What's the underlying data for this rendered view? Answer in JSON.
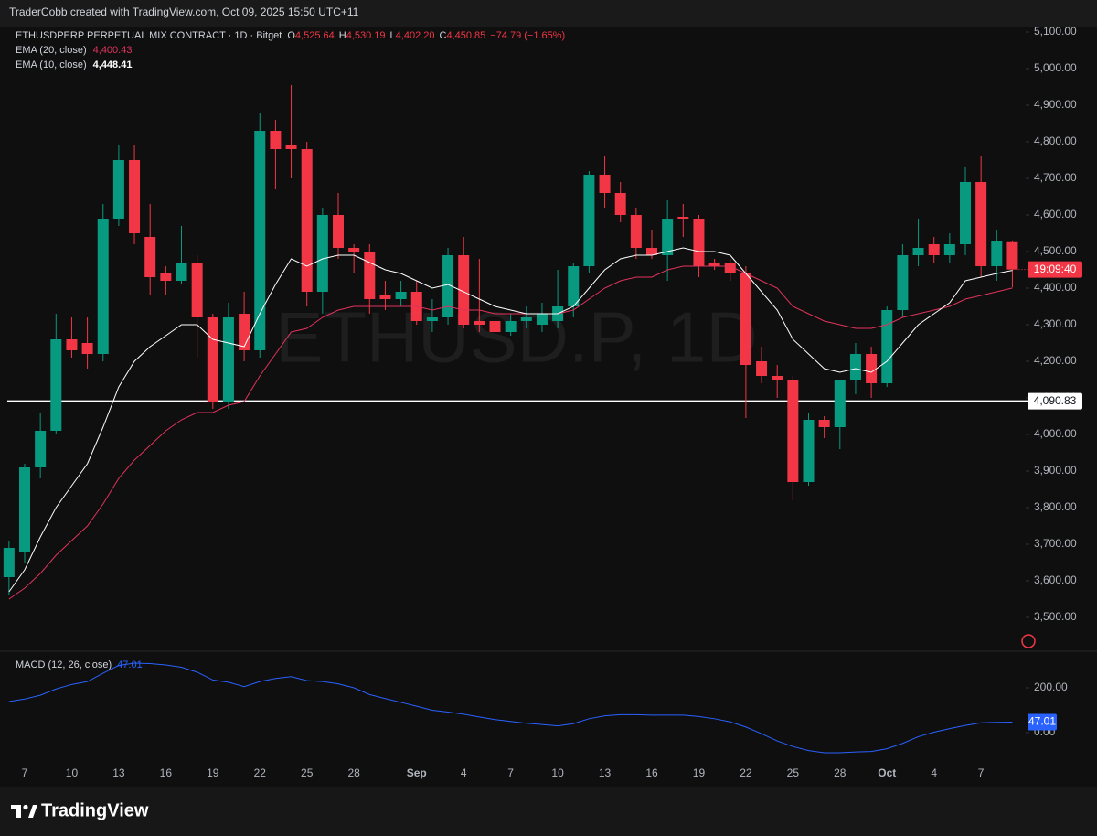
{
  "header_bar": "TraderCobb created with TradingView.com, Oct 09, 2025 15:50 UTC+11",
  "footer_brand": "TradingView",
  "chart_data": [
    {
      "type": "candlestick",
      "title": "ETHUSDPERP PERPETUAL MIX CONTRACT · 1D · Bitget",
      "legend": [
        {
          "key": "O",
          "value": "4,525.64"
        },
        {
          "key": "H",
          "value": "4,530.19"
        },
        {
          "key": "L",
          "value": "4,402.20"
        },
        {
          "key": "C",
          "value": "4,450.85"
        }
      ],
      "change": "−74.79 (−1.65%)",
      "watermark": "ETHUSD.P, 1D",
      "countdown": "19:09:40",
      "up_color": "#089981",
      "down_color": "#f23645",
      "categories": [
        null,
        "7",
        null,
        null,
        "10",
        null,
        null,
        "13",
        null,
        null,
        "16",
        null,
        null,
        "19",
        null,
        null,
        "22",
        null,
        null,
        "25",
        null,
        null,
        "28",
        null,
        null,
        null,
        "Sep",
        null,
        null,
        "4",
        null,
        null,
        "7",
        null,
        null,
        "10",
        null,
        null,
        "13",
        null,
        null,
        "16",
        null,
        null,
        "19",
        null,
        null,
        "22",
        null,
        null,
        "25",
        null,
        null,
        "28",
        null,
        null,
        "Oct",
        null,
        null,
        "4",
        null,
        null,
        "7",
        null,
        null
      ],
      "open": [
        3610,
        3680,
        3910,
        4010,
        4260,
        4250,
        4220,
        4590,
        4750,
        4540,
        4440,
        4420,
        4470,
        4320,
        4090,
        4330,
        4230,
        4830,
        4790,
        4780,
        4390,
        4600,
        4510,
        4500,
        4380,
        4370,
        4390,
        4310,
        4320,
        4490,
        4310,
        4310,
        4280,
        4310,
        4300,
        4310,
        4350,
        4460,
        4710,
        4660,
        4600,
        4510,
        4490,
        4595,
        4590,
        4470,
        4470,
        4440,
        4200,
        4160,
        4150,
        3870,
        4040,
        4020,
        4150,
        4220,
        4140,
        4340,
        4490,
        4520,
        4490,
        4520,
        4690,
        4460,
        4525.64
      ],
      "high": [
        3710,
        3920,
        4060,
        4330,
        4320,
        4320,
        4630,
        4790,
        4790,
        4630,
        4460,
        4570,
        4490,
        4330,
        4360,
        4390,
        4880,
        4860,
        4955,
        4800,
        4620,
        4660,
        4520,
        4520,
        4420,
        4420,
        4420,
        4370,
        4510,
        4540,
        4480,
        4320,
        4330,
        4350,
        4360,
        4450,
        4470,
        4720,
        4760,
        4690,
        4620,
        4560,
        4640,
        4630,
        4600,
        4480,
        4480,
        4460,
        4240,
        4190,
        4160,
        4060,
        4050,
        4150,
        4250,
        4240,
        4350,
        4520,
        4590,
        4540,
        4550,
        4730,
        4760,
        4560,
        4530.19
      ],
      "low": [
        3560,
        3650,
        3880,
        4000,
        4210,
        4180,
        4200,
        4570,
        4520,
        4380,
        4380,
        4410,
        4210,
        4070,
        4070,
        4200,
        4210,
        4670,
        4700,
        4350,
        4330,
        4480,
        4440,
        4330,
        4340,
        4350,
        4300,
        4280,
        4300,
        4290,
        4280,
        4270,
        4270,
        4290,
        4280,
        4290,
        4320,
        4440,
        4620,
        4580,
        4480,
        4480,
        4420,
        4540,
        4430,
        4450,
        4420,
        4045,
        4140,
        4100,
        3820,
        3860,
        3990,
        3960,
        4110,
        4100,
        4130,
        4320,
        4460,
        4470,
        4470,
        4490,
        4430,
        4420,
        4402.2
      ],
      "close": [
        3690,
        3910,
        4010,
        4260,
        4230,
        4220,
        4590,
        4750,
        4550,
        4430,
        4420,
        4470,
        4320,
        4090,
        4320,
        4230,
        4830,
        4780,
        4780,
        4390,
        4600,
        4510,
        4500,
        4370,
        4370,
        4390,
        4310,
        4320,
        4490,
        4300,
        4300,
        4280,
        4310,
        4320,
        4330,
        4350,
        4460,
        4710,
        4660,
        4600,
        4510,
        4490,
        4590,
        4590,
        4460,
        4460,
        4440,
        4190,
        4160,
        4150,
        3870,
        4040,
        4020,
        4150,
        4220,
        4140,
        4340,
        4490,
        4510,
        4490,
        4520,
        4690,
        4460,
        4530,
        4450.85
      ],
      "series": [
        {
          "name": "EMA (20, close)",
          "color": "#e0335c",
          "value_label": "4,400.43",
          "values": [
            3550,
            3580,
            3620,
            3670,
            3710,
            3750,
            3810,
            3880,
            3930,
            3970,
            4010,
            4040,
            4060,
            4060,
            4080,
            4090,
            4160,
            4220,
            4280,
            4290,
            4320,
            4340,
            4350,
            4350,
            4350,
            4350,
            4350,
            4340,
            4350,
            4340,
            4340,
            4330,
            4330,
            4330,
            4330,
            4330,
            4340,
            4370,
            4400,
            4420,
            4430,
            4430,
            4450,
            4460,
            4460,
            4460,
            4460,
            4440,
            4420,
            4400,
            4350,
            4330,
            4310,
            4300,
            4290,
            4290,
            4300,
            4320,
            4330,
            4340,
            4350,
            4370,
            4380,
            4390,
            4400.43
          ]
        },
        {
          "name": "EMA (10, close)",
          "color": "#ffffff",
          "value_label": "4,448.41",
          "values": [
            3570,
            3630,
            3720,
            3800,
            3860,
            3920,
            4020,
            4130,
            4200,
            4240,
            4270,
            4300,
            4300,
            4260,
            4250,
            4240,
            4330,
            4410,
            4480,
            4460,
            4480,
            4490,
            4490,
            4470,
            4450,
            4440,
            4420,
            4400,
            4410,
            4390,
            4370,
            4350,
            4340,
            4330,
            4330,
            4330,
            4350,
            4400,
            4450,
            4480,
            4490,
            4490,
            4500,
            4510,
            4500,
            4500,
            4490,
            4440,
            4390,
            4340,
            4260,
            4220,
            4180,
            4170,
            4180,
            4170,
            4200,
            4250,
            4300,
            4330,
            4360,
            4420,
            4430,
            4440,
            4448.41
          ]
        }
      ],
      "hline": {
        "value": 4090.83,
        "label": "4,090.83"
      },
      "ylim": [
        3407.5,
        5112.5
      ],
      "yticks": [
        {
          "value": 3500,
          "label": "3,500.00"
        },
        {
          "value": 3600,
          "label": "3,600.00"
        },
        {
          "value": 3700,
          "label": "3,700.00"
        },
        {
          "value": 3800,
          "label": "3,800.00"
        },
        {
          "value": 3900,
          "label": "3,900.00"
        },
        {
          "value": 4000,
          "label": "4,000.00"
        },
        {
          "value": 4100,
          "label": "4,100.00"
        },
        {
          "value": 4200,
          "label": "4,200.00"
        },
        {
          "value": 4300,
          "label": "4,300.00"
        },
        {
          "value": 4400,
          "label": "4,400.00"
        },
        {
          "value": 4500,
          "label": "4,500.00"
        },
        {
          "value": 4600,
          "label": "4,600.00"
        },
        {
          "value": 4700,
          "label": "4,700.00"
        },
        {
          "value": 4800,
          "label": "4,800.00"
        },
        {
          "value": 4900,
          "label": "4,900.00"
        },
        {
          "value": 5000,
          "label": "5,000.00"
        },
        {
          "value": 5100,
          "label": "5,100.00"
        }
      ],
      "grid": false
    },
    {
      "type": "line",
      "series": [
        {
          "name": "MACD (12, 26, close)",
          "color": "#2962ff",
          "value_label": "47.01",
          "values": [
            139,
            150,
            167,
            195,
            215,
            228,
            265,
            300,
            310,
            308,
            302,
            292,
            270,
            235,
            225,
            205,
            228,
            242,
            250,
            232,
            228,
            218,
            200,
            170,
            152,
            135,
            118,
            100,
            92,
            82,
            70,
            58,
            50,
            42,
            36,
            30,
            40,
            62,
            75,
            80,
            80,
            78,
            78,
            78,
            72,
            62,
            48,
            25,
            -5,
            -37,
            -62,
            -80,
            -90,
            -90,
            -86,
            -84,
            -72,
            -48,
            -18,
            2,
            18,
            32,
            44,
            46,
            47.01
          ]
        }
      ],
      "ylim": [
        -138.8,
        363.3
      ],
      "yticks": [
        {
          "value": 0,
          "label": "0.00"
        },
        {
          "value": 200,
          "label": "200.00"
        }
      ],
      "grid": false
    }
  ]
}
